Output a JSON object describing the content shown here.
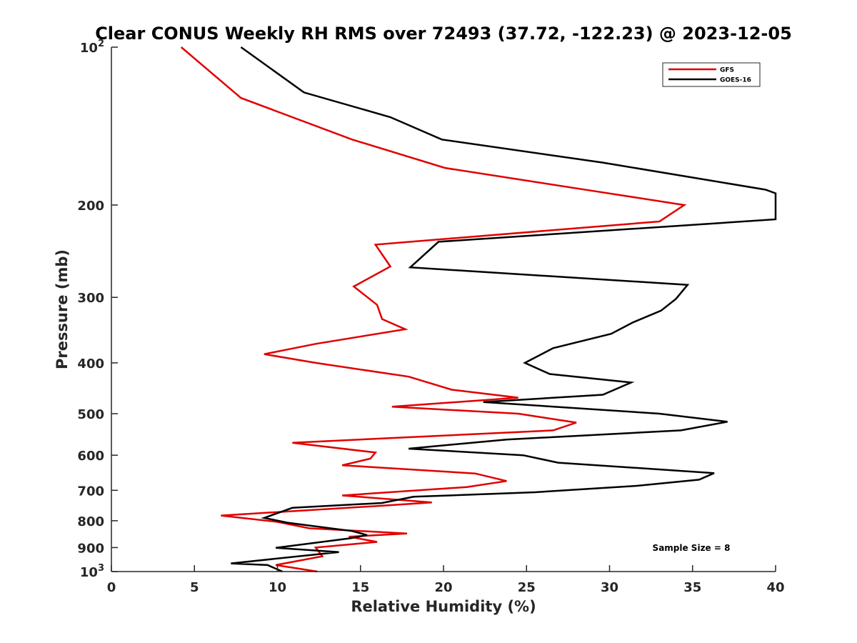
{
  "chart_data": {
    "type": "line",
    "title": "Clear CONUS Weekly RH RMS over 72493 (37.72, -122.23) @ 2023-12-05",
    "xlabel": "Relative Humidity (%)",
    "ylabel": "Pressure (mb)",
    "xlim": [
      0,
      40
    ],
    "ylim": [
      100,
      1000
    ],
    "y_scale": "log",
    "y_reversed": true,
    "grid": false,
    "legend_position": "top-right",
    "annotation": "Sample Size = 8",
    "x_ticks": [
      "0",
      "5",
      "10",
      "15",
      "20",
      "25",
      "30",
      "35",
      "40"
    ],
    "y_ticks": [
      {
        "value": 100,
        "base": "10",
        "exp": "2"
      },
      {
        "value": 200,
        "label": "200"
      },
      {
        "value": 300,
        "label": "300"
      },
      {
        "value": 400,
        "label": "400"
      },
      {
        "value": 500,
        "label": "500"
      },
      {
        "value": 600,
        "label": "600"
      },
      {
        "value": 700,
        "label": "700"
      },
      {
        "value": 800,
        "label": "800"
      },
      {
        "value": 900,
        "label": "900"
      },
      {
        "value": 1000,
        "base": "10",
        "exp": "3"
      }
    ],
    "series": [
      {
        "name": "GFS",
        "color": "#e00000",
        "points": [
          [
            4.2,
            100
          ],
          [
            7.8,
            125
          ],
          [
            14.5,
            150
          ],
          [
            20.1,
            170
          ],
          [
            29.0,
            188
          ],
          [
            34.5,
            200
          ],
          [
            33.0,
            215
          ],
          [
            15.9,
            238
          ],
          [
            16.8,
            262
          ],
          [
            14.6,
            286
          ],
          [
            16.0,
            310
          ],
          [
            16.3,
            330
          ],
          [
            17.7,
            345
          ],
          [
            12.3,
            368
          ],
          [
            9.2,
            385
          ],
          [
            12.3,
            400
          ],
          [
            17.9,
            425
          ],
          [
            20.5,
            450
          ],
          [
            24.5,
            466
          ],
          [
            16.9,
            485
          ],
          [
            24.5,
            500
          ],
          [
            28.0,
            520
          ],
          [
            26.6,
            538
          ],
          [
            10.9,
            568
          ],
          [
            15.9,
            593
          ],
          [
            15.6,
            609
          ],
          [
            13.9,
            627
          ],
          [
            21.9,
            650
          ],
          [
            23.8,
            672
          ],
          [
            21.4,
            690
          ],
          [
            13.9,
            716
          ],
          [
            19.3,
            738
          ],
          [
            16.6,
            748
          ],
          [
            6.6,
            782
          ],
          [
            10.0,
            804
          ],
          [
            11.9,
            827
          ],
          [
            17.8,
            846
          ],
          [
            14.3,
            858
          ],
          [
            16.0,
            878
          ],
          [
            12.3,
            900
          ],
          [
            12.7,
            935
          ],
          [
            9.9,
            972
          ],
          [
            12.4,
            1000
          ]
        ]
      },
      {
        "name": "GOES-16",
        "color": "#000000",
        "points": [
          [
            7.8,
            100
          ],
          [
            11.6,
            122
          ],
          [
            16.8,
            136
          ],
          [
            19.9,
            150
          ],
          [
            29.6,
            166
          ],
          [
            39.4,
            187
          ],
          [
            40.0,
            190
          ],
          [
            40.0,
            213
          ],
          [
            19.7,
            235
          ],
          [
            18.0,
            263
          ],
          [
            34.7,
            284
          ],
          [
            34.0,
            302
          ],
          [
            33.1,
            318
          ],
          [
            31.4,
            335
          ],
          [
            30.1,
            352
          ],
          [
            26.6,
            375
          ],
          [
            24.9,
            400
          ],
          [
            26.4,
            420
          ],
          [
            31.3,
            436
          ],
          [
            29.6,
            460
          ],
          [
            22.4,
            475
          ],
          [
            33.0,
            500
          ],
          [
            37.1,
            518
          ],
          [
            34.3,
            538
          ],
          [
            23.8,
            560
          ],
          [
            17.9,
            583
          ],
          [
            24.8,
            600
          ],
          [
            26.9,
            620
          ],
          [
            36.3,
            649
          ],
          [
            35.4,
            668
          ],
          [
            31.7,
            686
          ],
          [
            25.5,
            706
          ],
          [
            18.2,
            720
          ],
          [
            16.3,
            740
          ],
          [
            10.9,
            756
          ],
          [
            9.2,
            790
          ],
          [
            10.6,
            807
          ],
          [
            14.5,
            837
          ],
          [
            15.4,
            852
          ],
          [
            14.4,
            864
          ],
          [
            9.9,
            901
          ],
          [
            13.7,
            918
          ],
          [
            7.2,
            965
          ],
          [
            9.4,
            972
          ],
          [
            10.3,
            1000
          ]
        ]
      }
    ]
  }
}
